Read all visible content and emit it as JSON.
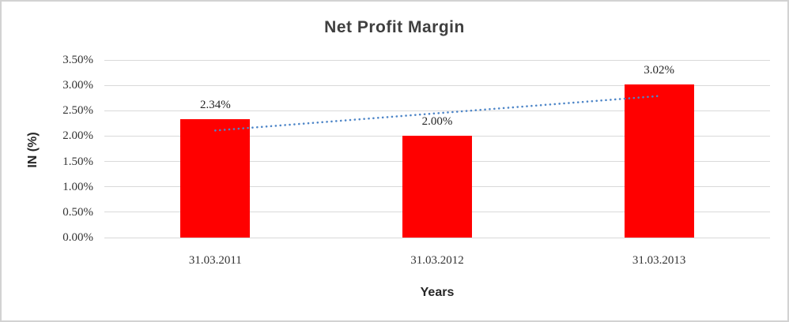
{
  "chart_data": {
    "type": "bar",
    "title": "Net Profit Margin",
    "xlabel": "Years",
    "ylabel": "IN (%)",
    "categories": [
      "31.03.2011",
      "31.03.2012",
      "31.03.2013"
    ],
    "values": [
      2.34,
      2.0,
      3.02
    ],
    "data_labels": [
      "2.34%",
      "2.00%",
      "3.02%"
    ],
    "y_ticks": [
      "0.00%",
      "0.50%",
      "1.00%",
      "1.50%",
      "2.00%",
      "2.50%",
      "3.00%",
      "3.50%"
    ],
    "y_tick_values": [
      0,
      0.5,
      1,
      1.5,
      2,
      2.5,
      3,
      3.5
    ],
    "ylim": [
      0,
      3.5
    ],
    "grid": true,
    "legend": "none",
    "bar_color": "#FF0000",
    "gridline_color": "#D9D9D9",
    "title_color": "#3F3F3F",
    "trendline": {
      "type": "linear",
      "style": "dotted",
      "color": "#4E86C8",
      "start_value": 2.11,
      "end_value": 2.79
    }
  }
}
